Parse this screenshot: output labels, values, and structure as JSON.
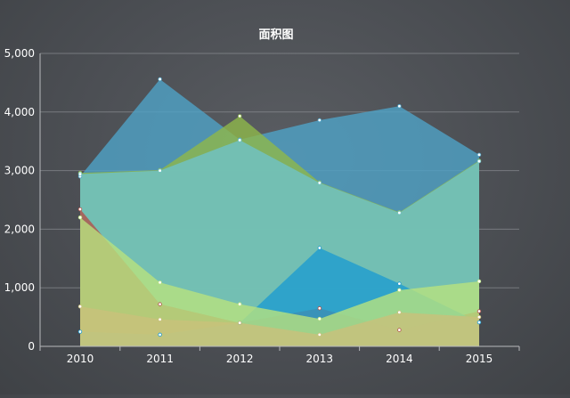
{
  "chart_data": {
    "type": "area",
    "title": "面积图",
    "xlabel": "",
    "ylabel": "",
    "categories": [
      "2010",
      "2011",
      "2012",
      "2013",
      "2014",
      "2015"
    ],
    "ylim": [
      0,
      5000
    ],
    "yticks": [
      "0",
      "1,000",
      "2,000",
      "3,000",
      "4,000",
      "5,000"
    ],
    "grid": true,
    "series": [
      {
        "color": "#4fa3c7",
        "values": [
          2900,
          4560,
          3530,
          3860,
          4100,
          3270
        ]
      },
      {
        "color": "#8fb84a",
        "values": [
          2960,
          3010,
          3930,
          2800,
          2290,
          3170
        ]
      },
      {
        "color": "#6fc3c8",
        "values": [
          2940,
          3000,
          3520,
          2790,
          2280,
          3160
        ]
      },
      {
        "color": "#b2534a",
        "values": [
          2340,
          720,
          400,
          650,
          280,
          600
        ]
      },
      {
        "color": "#1e9ccf",
        "values": [
          250,
          200,
          400,
          1680,
          1070,
          410
        ]
      },
      {
        "color": "#b8e27e",
        "values": [
          2200,
          1090,
          720,
          470,
          960,
          1110
        ]
      },
      {
        "color": "#c9c07a",
        "values": [
          680,
          460,
          400,
          200,
          580,
          500
        ]
      }
    ]
  }
}
